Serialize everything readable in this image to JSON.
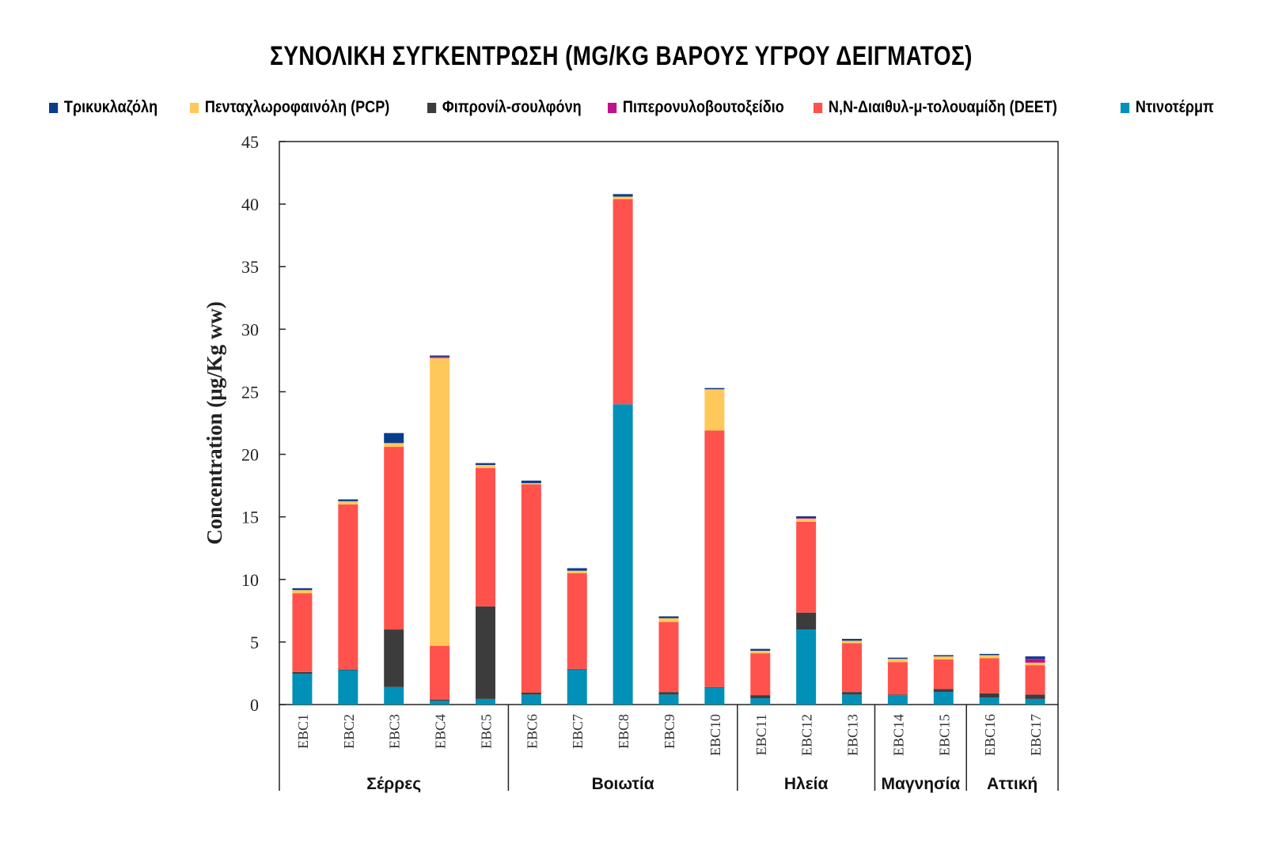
{
  "chart_data": {
    "type": "bar",
    "stacked": true,
    "title": "ΣΥΝΟΛΙΚΗ ΣΥΓΚΕΝΤΡΩΣΗ (MG/KG ΒΑΡΟΥΣ ΥΓΡΟΥ ΔΕΙΓΜΑΤΟΣ)",
    "ylabel": "Concentration  (μg/Kg ww)",
    "xlabel": "",
    "ylim": [
      0,
      45
    ],
    "yticks": [
      0,
      5,
      10,
      15,
      20,
      25,
      30,
      35,
      40,
      45
    ],
    "grid": false,
    "legend_position": "top",
    "categories": [
      "EBC1",
      "EBC2",
      "EBC3",
      "EBC4",
      "EBC5",
      "EBC6",
      "EBC7",
      "EBC8",
      "EBC9",
      "EBC10",
      "EBC11",
      "EBC12",
      "EBC13",
      "EBC14",
      "EBC15",
      "EBC16",
      "EBC17"
    ],
    "groups": [
      {
        "label": "Σέρρες",
        "members": [
          "EBC1",
          "EBC2",
          "EBC3",
          "EBC4",
          "EBC5"
        ]
      },
      {
        "label": "Βοιωτία",
        "members": [
          "EBC6",
          "EBC7",
          "EBC8",
          "EBC9",
          "EBC10"
        ]
      },
      {
        "label": "Ηλεία",
        "members": [
          "EBC11",
          "EBC12",
          "EBC13"
        ]
      },
      {
        "label": "Μαγνησία",
        "members": [
          "EBC14",
          "EBC15"
        ]
      },
      {
        "label": "Αττική",
        "members": [
          "EBC16",
          "EBC17"
        ]
      }
    ],
    "legend_order": [
      "Τρικυκλαζόλη",
      "Πενταχλωροφαινόλη (PCP)",
      "Φιπρονίλ-σουλφόνη",
      "Πιπερονυλοβουτοξείδιο",
      "N,N-Διαιθυλ-μ-τολουαμίδη (DEET)",
      "Ντινοτέρμπ"
    ],
    "series": [
      {
        "name": "Ντινοτέρμπ",
        "color": "#0090b8",
        "values": [
          2.45,
          2.75,
          1.4,
          0.3,
          0.45,
          0.8,
          2.8,
          24.0,
          0.8,
          1.35,
          0.5,
          6.0,
          0.8,
          0.75,
          1.0,
          0.55,
          0.45
        ]
      },
      {
        "name": "Φιπρονίλ-σουλφόνη",
        "color": "#3c3c3c",
        "values": [
          0.15,
          0.05,
          4.6,
          0.1,
          7.4,
          0.15,
          0.05,
          0,
          0.2,
          0.05,
          0.25,
          1.35,
          0.2,
          0.05,
          0.25,
          0.35,
          0.35
        ]
      },
      {
        "name": "N,N-Διαιθυλ-μ-τολουαμίδη (DEET)",
        "color": "#ff524c",
        "values": [
          6.3,
          13.2,
          14.6,
          4.3,
          11.05,
          16.65,
          7.65,
          16.4,
          5.6,
          20.5,
          3.35,
          7.25,
          3.9,
          2.6,
          2.35,
          2.8,
          2.35
        ]
      },
      {
        "name": "Πενταχλωροφαινόλη (PCP)",
        "color": "#ffc85a",
        "values": [
          0.25,
          0.25,
          0.3,
          23.0,
          0.25,
          0.1,
          0.2,
          0.2,
          0.3,
          3.3,
          0.2,
          0.25,
          0.2,
          0.25,
          0.25,
          0.25,
          0.2
        ]
      },
      {
        "name": "Πιπερονυλοβουτοξείδιο",
        "color": "#c0128c",
        "values": [
          0,
          0,
          0,
          0.1,
          0,
          0,
          0,
          0,
          0,
          0,
          0,
          0.05,
          0,
          0,
          0,
          0,
          0.3
        ]
      },
      {
        "name": "Τρικυκλαζόλη",
        "color": "#0a3c8c",
        "values": [
          0.15,
          0.15,
          0.8,
          0.1,
          0.15,
          0.2,
          0.2,
          0.2,
          0.15,
          0.1,
          0.15,
          0.15,
          0.15,
          0.1,
          0.1,
          0.1,
          0.2
        ]
      }
    ]
  }
}
